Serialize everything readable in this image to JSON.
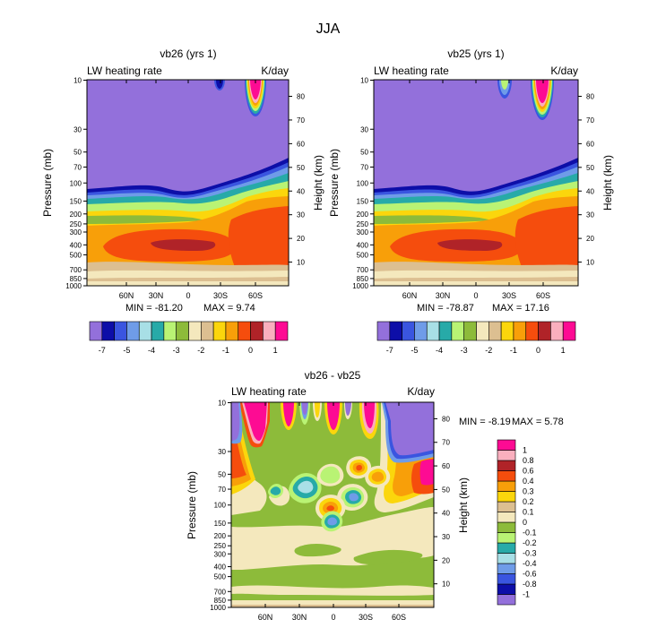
{
  "figure_title": "JJA",
  "colors": {
    "upper_palette": [
      "#9370db",
      "#0d0ea8",
      "#3a55e0",
      "#6f9ce8",
      "#a8dfe6",
      "#27aaa8",
      "#b9f374",
      "#8dbb3a",
      "#f4e8bd",
      "#dcbf91",
      "#fbd60c",
      "#f89f09",
      "#f54d0d",
      "#b02328",
      "#faafbe",
      "#fd0b93"
    ],
    "upper_labels": [
      "-7",
      "-5",
      "-4",
      "-3",
      "-2",
      "-1",
      "0",
      "1"
    ],
    "diff_palette": [
      "#9370db",
      "#0d0ea8",
      "#3a55e0",
      "#6f9ce8",
      "#a8dfe6",
      "#27aaa8",
      "#b9f374",
      "#8dbb3a",
      "#f4e8bd",
      "#dcbf91",
      "#fbd60c",
      "#f89f09",
      "#f54d0d",
      "#b02328",
      "#faafbe",
      "#fd0b93"
    ],
    "diff_labels": [
      "-1",
      "-0.8",
      "-0.6",
      "-0.4",
      "-0.3",
      "-0.2",
      "-0.1",
      "0",
      "0.1",
      "0.2",
      "0.3",
      "0.4",
      "0.6",
      "0.8",
      "1"
    ]
  },
  "chart_data": [
    {
      "type": "contour",
      "title": "vb26 (yrs 1)",
      "left_label": "LW heating rate",
      "right_label": "K/day",
      "xlabel": "",
      "ylabel": "Pressure (mb)",
      "ylabel_right": "Height (km)",
      "x_ticks": [
        "60N",
        "30N",
        "0",
        "30S",
        "60S"
      ],
      "pressure_ticks": [
        "10",
        "30",
        "50",
        "70",
        "100",
        "150",
        "200",
        "250",
        "300",
        "400",
        "500",
        "700",
        "850",
        "1000"
      ],
      "height_ticks": [
        "10",
        "20",
        "30",
        "40",
        "50",
        "60",
        "70",
        "80"
      ],
      "height_range_km": [
        0,
        87
      ],
      "min_label": "MIN = -81.20",
      "max_label": "MAX =  9.74",
      "min": -81.2,
      "max": 9.74
    },
    {
      "type": "contour",
      "title": "vb25 (yrs 1)",
      "left_label": "LW heating rate",
      "right_label": "K/day",
      "xlabel": "",
      "ylabel": "Pressure (mb)",
      "ylabel_right": "Height (km)",
      "x_ticks": [
        "60N",
        "30N",
        "0",
        "30S",
        "60S"
      ],
      "pressure_ticks": [
        "10",
        "30",
        "50",
        "70",
        "100",
        "150",
        "200",
        "250",
        "300",
        "400",
        "500",
        "700",
        "850",
        "1000"
      ],
      "height_ticks": [
        "10",
        "20",
        "30",
        "40",
        "50",
        "60",
        "70",
        "80"
      ],
      "height_range_km": [
        0,
        87
      ],
      "min_label": "MIN = -78.87",
      "max_label": "MAX =  17.16",
      "min": -78.87,
      "max": 17.16
    },
    {
      "type": "contour",
      "title": "vb26 - vb25",
      "left_label": "LW heating rate",
      "right_label": "K/day",
      "xlabel": "",
      "ylabel": "Pressure (mb)",
      "ylabel_right": "Height (km)",
      "x_ticks": [
        "60N",
        "30N",
        "0",
        "30S",
        "60S"
      ],
      "pressure_ticks": [
        "10",
        "30",
        "50",
        "70",
        "100",
        "150",
        "200",
        "250",
        "300",
        "400",
        "500",
        "700",
        "850",
        "1000"
      ],
      "height_ticks": [
        "10",
        "20",
        "30",
        "40",
        "50",
        "60",
        "70",
        "80"
      ],
      "height_range_km": [
        0,
        87
      ],
      "min_label": "MIN =  -8.19",
      "max_label": "MAX =  5.78",
      "min": -8.19,
      "max": 5.78
    }
  ]
}
